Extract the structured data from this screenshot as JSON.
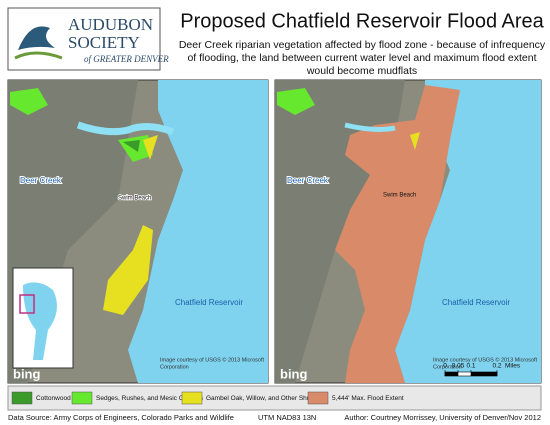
{
  "logo": {
    "line1": "AUDUBON",
    "line2": "SOCIETY",
    "line3": "of GREATER DENVER"
  },
  "header": {
    "title": "Proposed Chatfield Reservoir Flood Area",
    "subtitle": [
      "Deer Creek riparian vegetation affected by flood zone - because of infrequency",
      "of flooding, the land between current water level and maximum flood extent",
      "would become mudflats"
    ]
  },
  "left_map": {
    "creek": "Deer Creek",
    "beach": "Swim Beach",
    "reservoir": "Chatfield Reservoir",
    "credit": [
      "Image courtesy of USGS © 2013 Microsoft",
      "Corporation"
    ],
    "brand": "bing"
  },
  "right_map": {
    "creek": "Deer Creek",
    "beach": "Swim Beach",
    "reservoir": "Chatfield Reservoir",
    "credit": [
      "Image courtesy of USGS © 2013 Microsoft",
      "Corporation"
    ],
    "brand": "bing"
  },
  "scale_bar": {
    "ticks": [
      0,
      0.05,
      0.1,
      0.2
    ],
    "unit": "Miles"
  },
  "legend": [
    {
      "label": "Cottonwood",
      "color": "#3a9a2a"
    },
    {
      "label": "Sedges, Rushes, and Mesic Grasses",
      "color": "#66e82e"
    },
    {
      "label": "Gambel Oak, Willow, and Other Shrub",
      "color": "#e6e020"
    },
    {
      "label": "5,444' Max. Flood Extent",
      "color": "#d98a68"
    }
  ],
  "footer": {
    "source": "Data Source: Army Corps of Engineers, Colorado Parks and Wildlife",
    "projection": "UTM NAD83 13N",
    "author": "Author: Courtney Morrissey, University of Denver/Nov 2012"
  }
}
